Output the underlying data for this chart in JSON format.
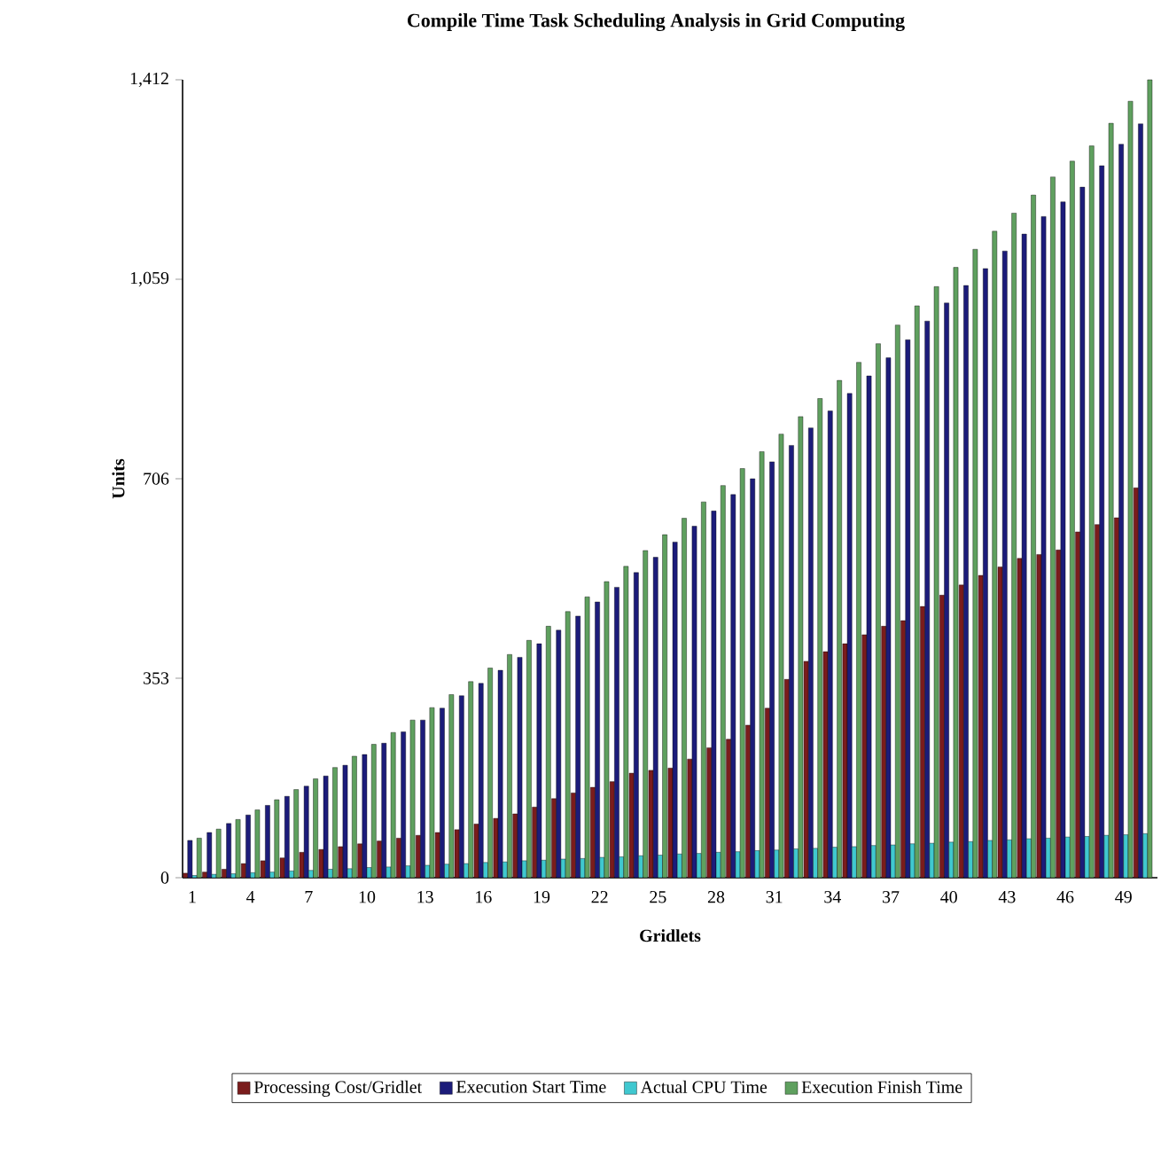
{
  "chart_data": {
    "type": "bar",
    "title": "Compile Time Task Scheduling Analysis in Grid Computing",
    "xlabel": "Gridlets",
    "ylabel": "Units",
    "categories": [
      "1",
      null,
      null,
      "4",
      null,
      null,
      "7",
      null,
      null,
      "10",
      null,
      null,
      "13",
      null,
      null,
      "16",
      null,
      null,
      "19",
      null,
      null,
      "22",
      null,
      null,
      "25",
      null,
      null,
      "28",
      null,
      null,
      "31",
      null,
      null,
      "34",
      null,
      null,
      "37",
      null,
      null,
      "40",
      null,
      null,
      "43",
      null,
      null,
      "46",
      null,
      null,
      "49",
      null
    ],
    "series": [
      {
        "name": "Processing Cost/Gridlet",
        "color": "#7a1c1c",
        "values": [
          8,
          10,
          15,
          25,
          30,
          35,
          45,
          50,
          55,
          60,
          65,
          70,
          75,
          80,
          85,
          95,
          105,
          113,
          125,
          140,
          150,
          160,
          170,
          185,
          190,
          194,
          210,
          230,
          245,
          270,
          300,
          351,
          383,
          400,
          414,
          430,
          445,
          455,
          480,
          500,
          518,
          535,
          550,
          565,
          572,
          580,
          612,
          625,
          637,
          690
        ]
      },
      {
        "name": "Execution Start Time",
        "color": "#1c1c7a",
        "values": [
          66,
          80,
          96,
          111,
          128,
          144,
          162,
          180,
          199,
          218,
          238,
          258,
          279,
          300,
          322,
          344,
          367,
          390,
          414,
          438,
          463,
          488,
          514,
          540,
          567,
          594,
          622,
          649,
          678,
          706,
          736,
          765,
          796,
          826,
          857,
          888,
          920,
          952,
          985,
          1017,
          1048,
          1078,
          1109,
          1139,
          1170,
          1196,
          1222,
          1260,
          1298,
          1334
        ]
      },
      {
        "name": "Actual CPU Time",
        "color": "#40c8d0",
        "values": [
          4,
          6,
          7,
          9,
          10,
          12,
          13,
          15,
          16,
          18,
          19,
          21,
          22,
          24,
          25,
          27,
          28,
          30,
          31,
          33,
          34,
          36,
          37,
          39,
          40,
          42,
          43,
          45,
          46,
          48,
          49,
          51,
          52,
          54,
          55,
          57,
          58,
          60,
          61,
          63,
          64,
          66,
          67,
          69,
          70,
          72,
          73,
          75,
          76,
          78
        ]
      },
      {
        "name": "Execution Finish Time",
        "color": "#5fa05f",
        "values": [
          70,
          86,
          103,
          120,
          138,
          156,
          175,
          195,
          215,
          236,
          257,
          279,
          301,
          324,
          347,
          371,
          395,
          420,
          445,
          471,
          497,
          524,
          551,
          579,
          607,
          636,
          665,
          694,
          724,
          754,
          785,
          816,
          848,
          880,
          912,
          945,
          978,
          1012,
          1046,
          1080,
          1112,
          1144,
          1176,
          1208,
          1240,
          1268,
          1295,
          1335,
          1374,
          1412
        ]
      }
    ],
    "ylim": [
      0,
      1412
    ],
    "yticks": [
      0,
      {
        "value": 353,
        "label": "353"
      },
      {
        "value": 706,
        "label": "706"
      },
      {
        "value": 1059,
        "label": "1,059"
      },
      {
        "value": 1412,
        "label": "1,412"
      }
    ],
    "grid": false,
    "legend": "bottom"
  }
}
